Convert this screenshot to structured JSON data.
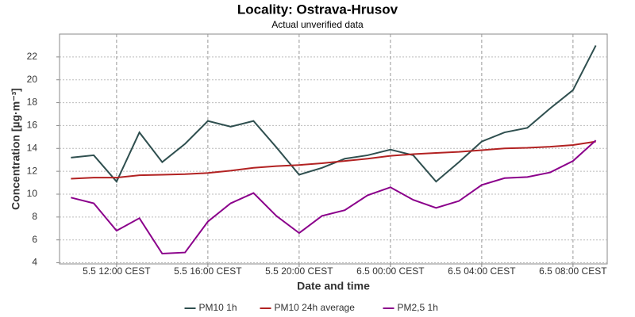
{
  "chart_data": {
    "type": "line",
    "title": "Locality: Ostrava-Hrusov",
    "subtitle": "Actual unverified data",
    "x_label": "Date and time",
    "y_label": "Concentration [µg·m⁻³]",
    "categories": [
      null,
      null,
      "5.5 12:00 CEST",
      null,
      null,
      null,
      "5.5 16:00 CEST",
      null,
      null,
      null,
      "5.5 20:00 CEST",
      null,
      null,
      null,
      "6.5 00:00 CEST",
      null,
      null,
      null,
      "6.5 04:00 CEST",
      null,
      null,
      null,
      "6.5 08:00 CEST",
      null
    ],
    "series": [
      {
        "name": "PM10 1h",
        "color": "#2f4f4f",
        "values": [
          13.2,
          13.4,
          11.1,
          15.4,
          12.8,
          14.4,
          16.4,
          15.9,
          16.4,
          14.1,
          11.7,
          12.3,
          13.1,
          13.4,
          13.9,
          13.4,
          11.1,
          12.8,
          14.6,
          15.4,
          15.8,
          17.5,
          19.1,
          23.0
        ]
      },
      {
        "name": "PM10 24h average",
        "color": "#b22222",
        "values": [
          11.35,
          11.45,
          11.45,
          11.65,
          11.7,
          11.75,
          11.85,
          12.05,
          12.3,
          12.45,
          12.55,
          12.7,
          12.9,
          13.1,
          13.35,
          13.5,
          13.6,
          13.7,
          13.85,
          14.0,
          14.05,
          14.15,
          14.3,
          14.6
        ]
      },
      {
        "name": "PM2,5 1h",
        "color": "#8b008b",
        "values": [
          9.7,
          9.2,
          6.8,
          7.9,
          4.8,
          4.9,
          7.6,
          9.2,
          10.1,
          8.1,
          6.6,
          8.1,
          8.6,
          9.9,
          10.6,
          9.5,
          8.8,
          9.4,
          10.8,
          11.4,
          11.5,
          11.9,
          12.9,
          14.7
        ]
      }
    ],
    "ylim": [
      3.9,
      24
    ],
    "yticks": [
      4,
      6,
      8,
      10,
      12,
      14,
      16,
      18,
      20,
      22
    ],
    "grid": true,
    "legend": "bottom"
  }
}
